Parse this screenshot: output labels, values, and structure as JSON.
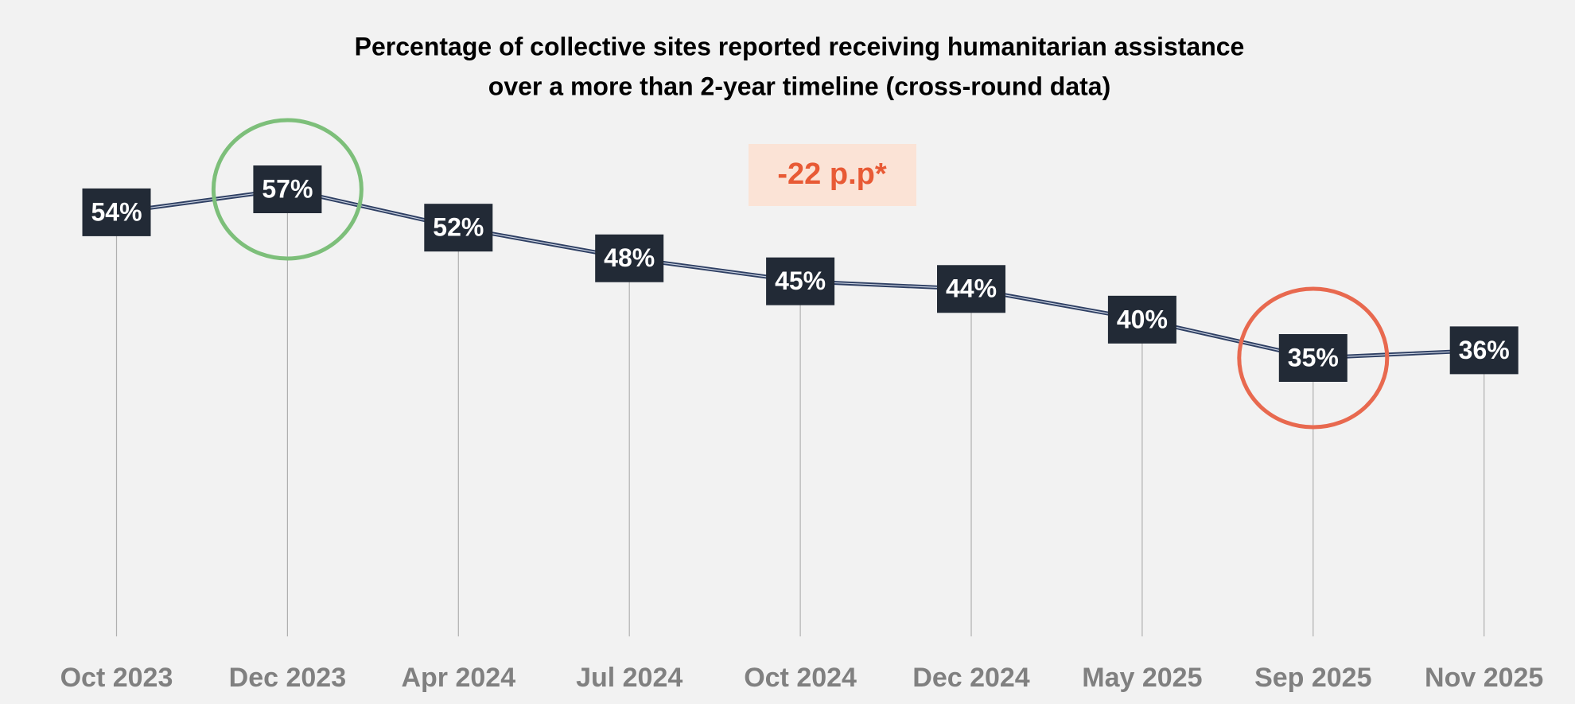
{
  "chart_data": {
    "type": "line",
    "title": [
      "Percentage of collective sites reported receiving humanitarian assistance",
      "over a more than 2-year timeline (cross-round data)"
    ],
    "annotation": "-22 p.p*",
    "categories": [
      "Oct 2023",
      "Dec 2023",
      "Apr 2024",
      "Jul 2024",
      "Oct 2024",
      "Dec 2024",
      "May 2025",
      "Sep 2025",
      "Nov 2025"
    ],
    "values": [
      54,
      57,
      52,
      48,
      45,
      44,
      40,
      35,
      36
    ],
    "value_labels": [
      "54%",
      "57%",
      "52%",
      "48%",
      "45%",
      "44%",
      "40%",
      "35%",
      "36%"
    ],
    "color": "#2e3f63",
    "label_box_color": "#222a36",
    "max_circle_color": "#7dbf7a",
    "min_circle_color": "#e8694f"
  }
}
